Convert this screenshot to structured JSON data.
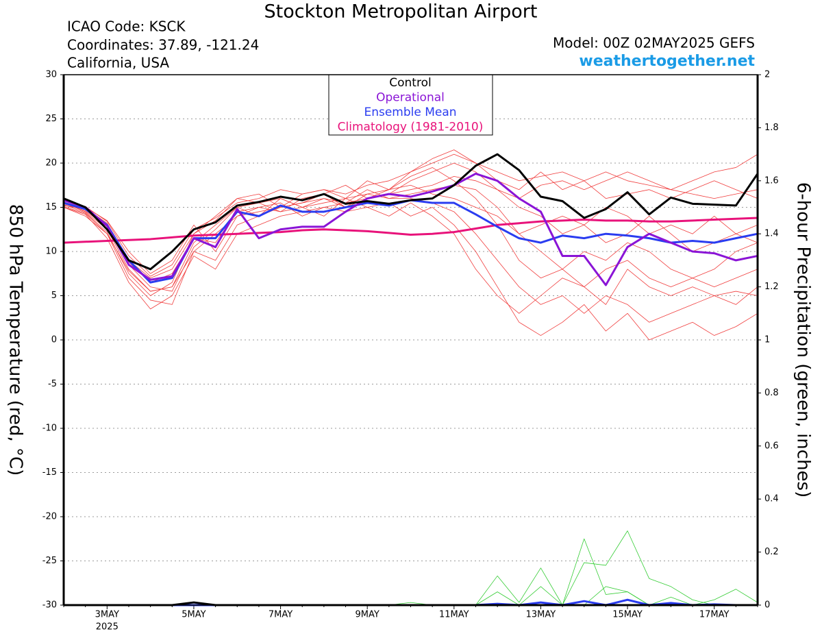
{
  "chart_data": {
    "type": "line",
    "title": "Stockton Metropolitan Airport",
    "station_lines": [
      "ICAO Code: KSCK",
      "Coordinates: 37.89, -121.24",
      "California, USA"
    ],
    "model": "Model: 00Z 02MAY2025 GEFS",
    "source": "weathertogether.net",
    "ylabel": "850 hPa Temperature (red, °C)",
    "y2label": "6-hour Precipitation (green, inches)",
    "year_label": "2025",
    "categories": [
      null,
      null,
      "3MAY",
      null,
      null,
      null,
      "5MAY",
      null,
      null,
      null,
      "7MAY",
      null,
      null,
      null,
      "9MAY",
      null,
      null,
      null,
      "11MAY",
      null,
      null,
      null,
      "13MAY",
      null,
      null,
      null,
      "15MAY",
      null,
      null,
      null,
      "17MAY",
      null,
      null
    ],
    "ylim": [
      -30,
      30
    ],
    "yticks": [
      -30,
      -25,
      -20,
      -15,
      -10,
      -5,
      0,
      5,
      10,
      15,
      20,
      25,
      30
    ],
    "y2lim": [
      0,
      2
    ],
    "y2ticks": [
      0,
      0.2,
      0.4,
      0.6,
      0.8,
      1,
      1.2,
      1.4,
      1.6,
      1.8,
      2
    ],
    "grid": true,
    "series": [
      {
        "name": "Control",
        "color": "#000000",
        "values": [
          16.0,
          15.0,
          12.5,
          9.0,
          8.0,
          10.0,
          12.5,
          13.3,
          15.2,
          15.6,
          16.2,
          15.8,
          16.5,
          15.4,
          15.7,
          15.4,
          15.8,
          16.0,
          17.5,
          19.7,
          21.0,
          19.2,
          16.2,
          15.7,
          13.8,
          14.8,
          16.7,
          14.2,
          16.1,
          15.4,
          15.3,
          15.2,
          18.8
        ]
      },
      {
        "name": "Operational",
        "color": "#8a14d6",
        "values": [
          15.8,
          15.0,
          12.9,
          8.5,
          6.8,
          7.2,
          11.5,
          10.5,
          14.8,
          11.5,
          12.5,
          12.8,
          12.8,
          14.5,
          16.0,
          16.5,
          16.2,
          16.8,
          17.5,
          18.8,
          18.0,
          16.0,
          14.5,
          9.5,
          9.5,
          6.2,
          10.5,
          12.0,
          11.0,
          10.0,
          9.8,
          9.0,
          9.5
        ]
      },
      {
        "name": "Ensemble Mean",
        "color": "#2a3cf0",
        "values": [
          15.5,
          14.8,
          13.0,
          9.0,
          6.5,
          7.0,
          11.5,
          11.5,
          14.5,
          14.0,
          15.2,
          14.5,
          14.5,
          15.0,
          15.5,
          15.2,
          15.8,
          15.5,
          15.5,
          14.2,
          12.8,
          11.5,
          11.0,
          11.8,
          11.5,
          12.0,
          11.8,
          11.5,
          11.0,
          11.2,
          11.0,
          11.5,
          12.0
        ]
      },
      {
        "name": "Climatology (1981-2010)",
        "color": "#e8127a",
        "values": [
          11.0,
          11.1,
          11.2,
          11.3,
          11.4,
          11.6,
          11.8,
          11.9,
          12.0,
          12.1,
          12.2,
          12.4,
          12.5,
          12.4,
          12.3,
          12.1,
          11.9,
          12.0,
          12.2,
          12.6,
          13.0,
          13.2,
          13.4,
          13.5,
          13.6,
          13.5,
          13.5,
          13.4,
          13.4,
          13.5,
          13.6,
          13.7,
          13.8
        ]
      },
      {
        "color": "#f03c3c",
        "values": [
          15.5,
          14.5,
          12.5,
          8,
          5.5,
          6,
          11,
          13,
          15,
          15.5,
          16,
          15,
          16,
          15.5,
          17,
          16,
          16.5,
          17,
          17.5,
          17,
          15,
          12,
          10,
          8,
          6,
          8,
          9,
          7,
          6,
          7,
          6,
          7,
          8
        ]
      },
      {
        "color": "#f03c3c",
        "values": [
          15,
          14,
          12,
          7,
          4.5,
          4,
          10,
          12,
          14,
          14.5,
          15,
          15.5,
          16.5,
          15,
          16,
          16.5,
          18,
          19,
          20,
          19,
          17,
          16,
          17.5,
          18,
          17,
          18,
          19,
          18,
          17,
          18,
          19,
          19.5,
          21
        ]
      },
      {
        "color": "#f03c3c",
        "values": [
          15.2,
          14.8,
          13,
          9,
          7,
          8,
          12,
          14,
          16,
          16.5,
          15,
          16.5,
          17,
          16,
          18,
          17,
          19,
          20,
          21,
          20,
          18,
          17,
          19,
          17,
          18,
          16,
          16.5,
          17,
          16,
          17,
          18,
          17,
          16
        ]
      },
      {
        "color": "#f03c3c",
        "values": [
          15.8,
          15,
          13.5,
          10,
          7.5,
          9,
          13,
          10,
          14,
          15,
          14.5,
          15,
          14,
          16,
          15,
          15.5,
          14,
          15,
          13,
          10,
          6,
          2,
          0.5,
          2,
          4,
          1,
          3,
          0,
          1,
          2,
          0.5,
          1.5,
          3
        ]
      },
      {
        "color": "#f03c3c",
        "values": [
          15,
          14.2,
          11.5,
          6.5,
          3.5,
          5,
          9.5,
          8,
          12,
          13,
          14,
          14.5,
          15,
          14.5,
          15,
          14,
          15.5,
          14,
          12,
          8,
          5,
          3,
          5,
          7,
          6,
          4,
          8,
          6,
          5,
          6,
          5,
          5.5,
          5
        ]
      },
      {
        "color": "#f03c3c",
        "values": [
          15.4,
          14.6,
          12.8,
          8.5,
          6,
          5.5,
          10.5,
          12.5,
          15,
          14,
          16,
          15,
          15.5,
          16,
          16.5,
          17,
          17.5,
          16.5,
          16,
          15,
          14,
          12,
          13,
          14,
          13,
          15,
          14,
          12,
          13,
          12,
          14,
          12,
          13
        ]
      },
      {
        "color": "#f03c3c",
        "values": [
          15.6,
          14.9,
          13.2,
          8.8,
          6.5,
          7.5,
          11.5,
          11,
          14.5,
          15,
          15.5,
          14,
          15,
          15.5,
          16,
          16.5,
          17,
          17.5,
          18.5,
          18,
          17,
          15,
          14,
          12,
          13,
          11,
          12,
          14,
          12,
          10,
          11,
          12,
          11
        ]
      },
      {
        "color": "#f03c3c",
        "values": [
          15.3,
          14.4,
          12.2,
          7.5,
          5,
          6.5,
          12,
          13.5,
          16,
          15.5,
          14.5,
          16,
          16.5,
          17.5,
          16,
          17,
          18.5,
          19.5,
          18,
          16,
          13,
          9,
          7,
          8,
          10,
          9,
          11,
          10,
          8,
          7,
          8,
          10,
          11
        ]
      },
      {
        "color": "#f03c3c",
        "values": [
          15.7,
          15.1,
          13.4,
          9.5,
          7.2,
          8.5,
          12.5,
          13.8,
          15.5,
          16,
          17,
          16.5,
          17,
          16.5,
          17.5,
          18,
          19,
          20.5,
          21.5,
          20,
          19,
          18,
          18.5,
          19,
          18,
          19,
          18,
          17.5,
          17,
          16.5,
          16,
          16.5,
          17
        ]
      },
      {
        "color": "#f03c3c",
        "values": [
          15.1,
          14.3,
          12,
          7.8,
          5.5,
          6,
          10,
          9,
          13,
          14,
          15,
          15.5,
          16,
          15,
          16.5,
          16,
          16,
          15.5,
          14.5,
          12,
          9,
          6,
          4,
          5,
          3,
          5,
          4,
          2,
          3,
          4,
          5,
          4,
          6
        ]
      },
      {
        "color": "#33cc33",
        "axis": "y2",
        "values": [
          0,
          0,
          0,
          0,
          0,
          0,
          0,
          0,
          0,
          0,
          0,
          0,
          0,
          0,
          0,
          0,
          0,
          0,
          0,
          0,
          0.11,
          0.01,
          0.14,
          0,
          0.25,
          0.04,
          0.05,
          0,
          0,
          0,
          0,
          0,
          0
        ]
      },
      {
        "color": "#33cc33",
        "axis": "y2",
        "values": [
          0,
          0,
          0,
          0,
          0,
          0,
          0,
          0,
          0,
          0,
          0,
          0,
          0,
          0,
          0,
          0,
          0,
          0,
          0,
          0,
          0,
          0,
          0,
          0,
          0.16,
          0.15,
          0.28,
          0.1,
          0.07,
          0.02,
          0,
          0,
          0
        ]
      },
      {
        "color": "#33cc33",
        "axis": "y2",
        "values": [
          0,
          0,
          0,
          0,
          0,
          0,
          0,
          0,
          0,
          0,
          0,
          0,
          0,
          0,
          0,
          0,
          0.01,
          0,
          0,
          0,
          0.05,
          0,
          0.07,
          0,
          0,
          0.07,
          0.05,
          0,
          0.03,
          0,
          0.02,
          0.06,
          0.01
        ]
      },
      {
        "color": "#2a3cf0",
        "axis": "y2",
        "values": [
          0,
          0,
          0,
          0,
          0,
          0,
          0,
          0,
          0,
          0,
          0,
          0,
          0,
          0,
          0,
          0,
          0,
          0,
          0,
          0,
          0.005,
          0,
          0.01,
          0,
          0.015,
          0,
          0.02,
          0,
          0.008,
          0,
          0.003,
          0,
          0
        ]
      },
      {
        "color": "#000000",
        "axis": "y2",
        "values": [
          0,
          0,
          0,
          0,
          0,
          0,
          0.01,
          0,
          0,
          0,
          0,
          0,
          0,
          0,
          0,
          0,
          0,
          0,
          0,
          0,
          0,
          0,
          0,
          0,
          0,
          0,
          0,
          0,
          0,
          0,
          0,
          0,
          0
        ]
      }
    ]
  }
}
